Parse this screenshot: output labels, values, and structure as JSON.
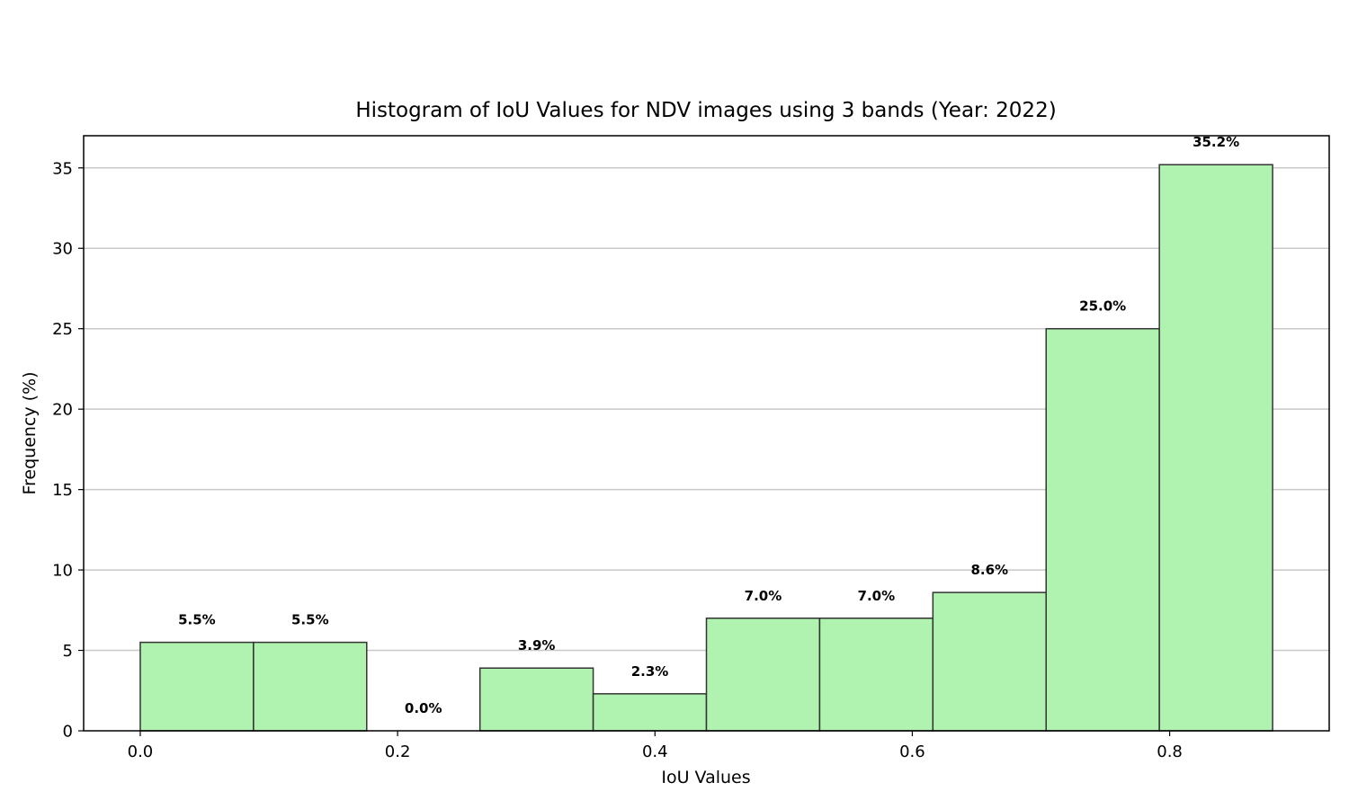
{
  "chart_data": {
    "type": "bar",
    "title": "Histogram of IoU Values for NDV images using 3 bands (Year: 2022)",
    "xlabel": "IoU Values",
    "ylabel": "Frequency (%)",
    "bins": [
      {
        "x0": 0.0,
        "x1": 0.088,
        "value": 5.5,
        "label": "5.5%"
      },
      {
        "x0": 0.088,
        "x1": 0.176,
        "value": 5.5,
        "label": "5.5%"
      },
      {
        "x0": 0.176,
        "x1": 0.264,
        "value": 0.0,
        "label": "0.0%"
      },
      {
        "x0": 0.264,
        "x1": 0.352,
        "value": 3.9,
        "label": "3.9%"
      },
      {
        "x0": 0.352,
        "x1": 0.44,
        "value": 2.3,
        "label": "2.3%"
      },
      {
        "x0": 0.44,
        "x1": 0.528,
        "value": 7.0,
        "label": "7.0%"
      },
      {
        "x0": 0.528,
        "x1": 0.616,
        "value": 7.0,
        "label": "7.0%"
      },
      {
        "x0": 0.616,
        "x1": 0.704,
        "value": 8.6,
        "label": "8.6%"
      },
      {
        "x0": 0.704,
        "x1": 0.792,
        "value": 25.0,
        "label": "25.0%"
      },
      {
        "x0": 0.792,
        "x1": 0.88,
        "value": 35.2,
        "label": "35.2%"
      }
    ],
    "xlim": [
      -0.044,
      0.924
    ],
    "ylim": [
      0,
      37
    ],
    "xticks": [
      0.0,
      0.2,
      0.4,
      0.6,
      0.8
    ],
    "xtick_labels": [
      "0.0",
      "0.2",
      "0.4",
      "0.6",
      "0.8"
    ],
    "yticks": [
      0,
      5,
      10,
      15,
      20,
      25,
      30,
      35
    ],
    "ytick_labels": [
      "0",
      "5",
      "10",
      "15",
      "20",
      "25",
      "30",
      "35"
    ],
    "grid": "horizontal",
    "colors": {
      "bar_fill": "#b0f2b0",
      "bar_edge": "#333333",
      "grid": "#c8c8c8"
    }
  }
}
